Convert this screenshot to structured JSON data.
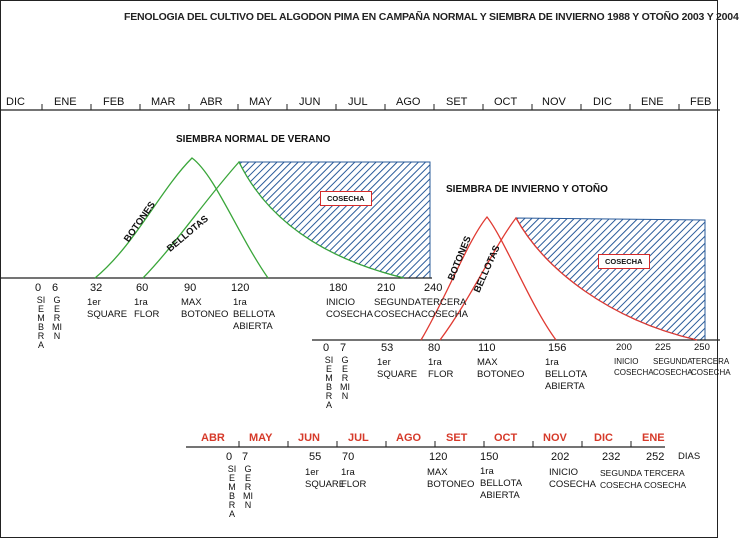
{
  "title": "FENOLOGIA DEL CULTIVO DEL ALGODON PIMA EN CAMPAÑA NORMAL Y SIEMBRA DE INVIERNO 1988 Y OTOÑO 2003 Y 2004",
  "months_top": [
    "DIC",
    "ENE",
    "FEB",
    "MAR",
    "ABR",
    "MAY",
    "JUN",
    "JUL",
    "AGO",
    "SET",
    "OCT",
    "NOV",
    "DIC",
    "ENE",
    "FEB"
  ],
  "months_bottom": [
    "ABR",
    "MAY",
    "JUN",
    "JUL",
    "AGO",
    "SET",
    "OCT",
    "NOV",
    "DIC",
    "ENE"
  ],
  "section_normal": "SIEMBRA NORMAL DE VERANO",
  "section_winter": "SIEMBRA DE INVIERNO Y OTOÑO",
  "harvest_label": "COSECHA",
  "curve_labels": {
    "botones": "BOTONES",
    "bellotas": "BELLOTAS"
  },
  "siembra_word": "SIEMBRA",
  "germin_word": "GERMIN",
  "dias_label": "DIAS",
  "normal_stages": [
    {
      "num": "32",
      "label": "1er\nSQUARE"
    },
    {
      "num": "60",
      "label": "1ra\nFLOR"
    },
    {
      "num": "90",
      "label": "MAX\nBOTONEO"
    },
    {
      "num": "120",
      "label": "1ra\nBELLOTA\nABIERTA"
    },
    {
      "num": "180",
      "label": "INICIO\nCOSECHA"
    },
    {
      "num": "210",
      "label": "SEGUNDA\nCOSECHA"
    },
    {
      "num": "240",
      "label": "TERCERA\nCOSECHA"
    }
  ],
  "winter_stages": [
    {
      "num": "53",
      "label": "1er\nSQUARE"
    },
    {
      "num": "80",
      "label": "1ra\nFLOR"
    },
    {
      "num": "110",
      "label": "MAX\nBOTONEO"
    },
    {
      "num": "156",
      "label": "1ra\nBELLOTA\nABIERTA"
    },
    {
      "num": "200",
      "label": "INICIO\nCOSECHA"
    },
    {
      "num": "225",
      "label": "SEGUNDA\nCOSECHA"
    },
    {
      "num": "250",
      "label": "TERCERA\nCOSECHA"
    }
  ],
  "bottom_stages": [
    {
      "num": "55",
      "label": "1er\nSQUARE"
    },
    {
      "num": "70",
      "label": "1ra\nFLOR"
    },
    {
      "num": "120",
      "label": "MAX\nBOTONEO"
    },
    {
      "num": "150",
      "label": "1ra\nBELLOTA\nABIERTA"
    },
    {
      "num": "202",
      "label": "INICIO\nCOSECHA"
    },
    {
      "num": "232",
      "label": "SEGUNDA\nCOSECHA"
    },
    {
      "num": "252",
      "label": "TERCERA\nCOSECHA"
    }
  ],
  "zero_labels": {
    "siembra": "0",
    "germin_normal": "6",
    "germin_winter": "7",
    "germin_bottom": "7",
    "siembra_bottom": "0"
  },
  "colors": {
    "normal_curve": "#3aa63a",
    "winter_curve": "#e03a32",
    "hatch": "#2a5b9a",
    "month_bottom": "#d63a2a"
  }
}
